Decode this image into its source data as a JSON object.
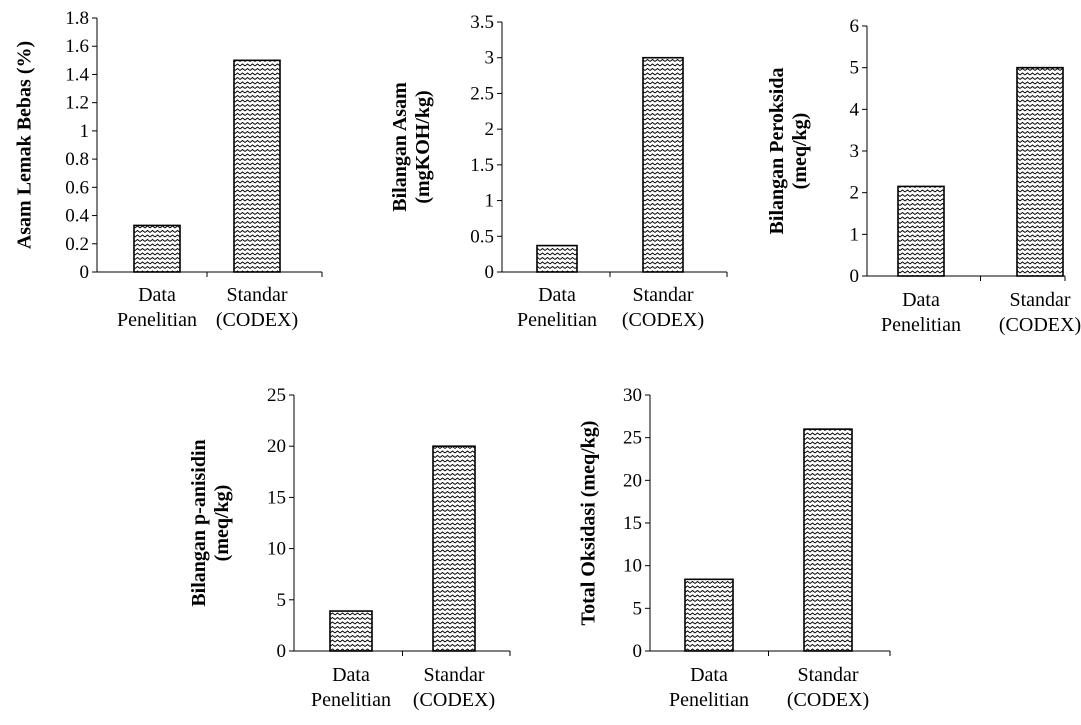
{
  "colors": {
    "bar_fill_pattern": "zigzag-hatch",
    "bar_stroke": "#000000",
    "axis": "#000000",
    "background": "#ffffff"
  },
  "chart_data": [
    {
      "type": "bar",
      "ylabel": [
        "Asam Lemak Bebas (%)"
      ],
      "categories": [
        [
          "Data",
          "Penelitian"
        ],
        [
          "Standar",
          "(CODEX)"
        ]
      ],
      "values": [
        0.33,
        1.5
      ],
      "ylim": [
        0,
        1.8
      ],
      "yticks": [
        "0",
        "0.2",
        "0.4",
        "0.6",
        "0.8",
        "1",
        "1.2",
        "1.4",
        "1.6",
        "1.8"
      ],
      "grid": false
    },
    {
      "type": "bar",
      "ylabel": [
        "Bilangan Asam",
        "(mgKOH/kg)"
      ],
      "categories": [
        [
          "Data",
          "Penelitian"
        ],
        [
          "Standar",
          "(CODEX)"
        ]
      ],
      "values": [
        0.37,
        3.0
      ],
      "ylim": [
        0,
        3.5
      ],
      "yticks": [
        "0",
        "0.5",
        "1",
        "1.5",
        "2",
        "2.5",
        "3",
        "3.5"
      ],
      "grid": false
    },
    {
      "type": "bar",
      "ylabel": [
        "Bilangan Peroksida",
        "(meq/kg)"
      ],
      "categories": [
        [
          "Data",
          "Penelitian"
        ],
        [
          "Standar",
          "(CODEX)"
        ]
      ],
      "values": [
        2.15,
        5.0
      ],
      "ylim": [
        0,
        6
      ],
      "yticks": [
        "0",
        "1",
        "2",
        "3",
        "4",
        "5",
        "6"
      ],
      "grid": false
    },
    {
      "type": "bar",
      "ylabel": [
        "Bilangan p-anisidin",
        "(meq/kg)"
      ],
      "categories": [
        [
          "Data",
          "Penelitian"
        ],
        [
          "Standar",
          "(CODEX)"
        ]
      ],
      "values": [
        3.9,
        20.0
      ],
      "ylim": [
        0,
        25
      ],
      "yticks": [
        "0",
        "5",
        "10",
        "15",
        "20",
        "25"
      ],
      "grid": false
    },
    {
      "type": "bar",
      "ylabel": [
        "Total Oksidasi (meq/kg)"
      ],
      "categories": [
        [
          "Data",
          "Penelitian"
        ],
        [
          "Standar",
          "(CODEX)"
        ]
      ],
      "values": [
        8.4,
        26.0
      ],
      "ylim": [
        0,
        30
      ],
      "yticks": [
        "0",
        "5",
        "10",
        "15",
        "20",
        "25",
        "30"
      ],
      "grid": false
    }
  ]
}
